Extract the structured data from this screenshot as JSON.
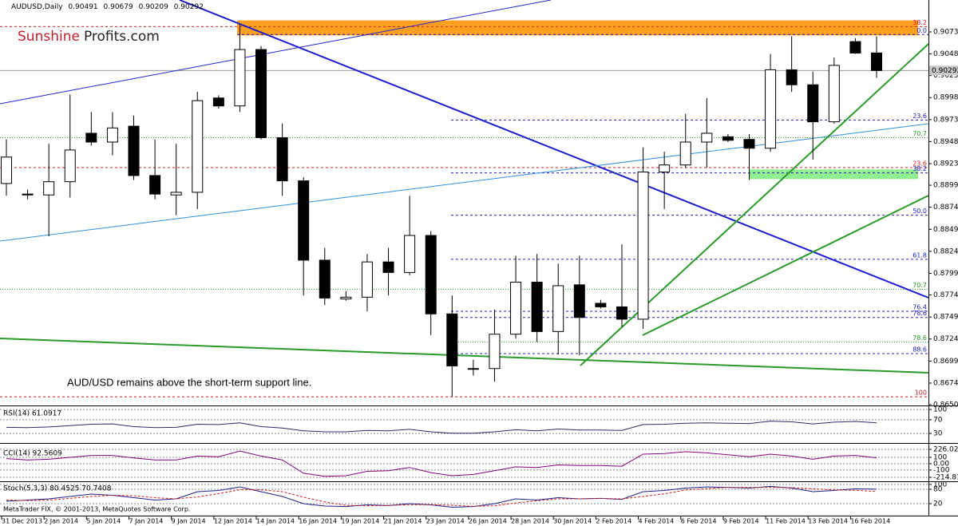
{
  "chart_data": [
    {
      "type": "candlestick",
      "symbol": "AUDUSD,Daily",
      "brand": [
        "Sunshine",
        "Profits.com"
      ],
      "annotation": "AUD/USD remains above the short-term support line.",
      "footer": "MetaTrader FIX, © 2001-2013, MetaQuotes Software Corp.",
      "categories": [
        "31 Dec 2013",
        null,
        "2 Jan 2014",
        null,
        "5 Jan 2014",
        null,
        "7 Jan 2014",
        null,
        "9 Jan 2014",
        null,
        "12 Jan 2014",
        null,
        "14 Jan 2014",
        null,
        "16 Jan 2014",
        null,
        "19 Jan 2014",
        null,
        "21 Jan 2014",
        null,
        "23 Jan 2014",
        null,
        "26 Jan 2014",
        null,
        "28 Jan 2014",
        null,
        "30 Jan 2014",
        null,
        "2 Feb 2014",
        null,
        "4 Feb 2014",
        null,
        "6 Feb 2014",
        null,
        "9 Feb 2014",
        null,
        "11 Feb 2014",
        null,
        "13 Feb 2014",
        null,
        "16 Feb 2014",
        null
      ],
      "open": [
        0.8901,
        0.8889,
        0.8888,
        0.8903,
        0.8958,
        0.8948,
        0.8966,
        0.891,
        0.8888,
        0.8891,
        0.8998,
        0.8989,
        0.9053,
        0.8953,
        0.8904,
        0.8814,
        0.877,
        0.8772,
        0.8812,
        0.88,
        0.8842,
        0.8753,
        0.8691,
        0.8691,
        0.873,
        0.8789,
        0.8733,
        0.8786,
        0.8765,
        0.8761,
        0.8747,
        0.8914,
        0.8922,
        0.8948,
        0.8954,
        0.8951,
        0.8941,
        0.903,
        0.9013,
        0.8971,
        0.9062,
        0.90491
      ],
      "high": [
        0.8951,
        0.8894,
        0.8946,
        0.9002,
        0.8982,
        0.8982,
        0.8978,
        0.8951,
        0.8946,
        0.9005,
        0.9001,
        0.9082,
        0.9057,
        0.8969,
        0.8908,
        0.8828,
        0.8779,
        0.8821,
        0.8828,
        0.8887,
        0.8847,
        0.8774,
        0.8701,
        0.8758,
        0.8819,
        0.8821,
        0.881,
        0.8819,
        0.8769,
        0.8832,
        0.8942,
        0.8937,
        0.898,
        0.8998,
        0.8957,
        0.8957,
        0.9048,
        0.9068,
        0.9028,
        0.9044,
        0.9066,
        0.90679
      ],
      "low": [
        0.8887,
        0.8883,
        0.8841,
        0.8885,
        0.8944,
        0.8933,
        0.8905,
        0.8883,
        0.8865,
        0.8872,
        0.8986,
        0.8982,
        0.8951,
        0.8887,
        0.8774,
        0.8763,
        0.8768,
        0.8756,
        0.8774,
        0.8797,
        0.8729,
        0.8659,
        0.8683,
        0.8676,
        0.8725,
        0.8721,
        0.8707,
        0.8706,
        0.8759,
        0.8738,
        0.8736,
        0.8872,
        0.8919,
        0.8919,
        0.8948,
        0.8905,
        0.8937,
        0.9005,
        0.8928,
        0.8969,
        0.9048,
        0.90209
      ],
      "close": [
        0.8931,
        0.8888,
        0.8903,
        0.8939,
        0.8948,
        0.8964,
        0.891,
        0.8889,
        0.8891,
        0.8995,
        0.8989,
        0.9053,
        0.8953,
        0.8904,
        0.8814,
        0.8771,
        0.8772,
        0.8812,
        0.88,
        0.8842,
        0.8753,
        0.8694,
        0.8691,
        0.873,
        0.8789,
        0.8733,
        0.8785,
        0.8749,
        0.8761,
        0.8747,
        0.8914,
        0.8922,
        0.8948,
        0.8958,
        0.895,
        0.8941,
        0.903,
        0.9013,
        0.8971,
        0.9035,
        0.9049,
        0.90292
      ],
      "ylim": [
        0.865,
        0.91092
      ],
      "yticks": [
        {
          "value": 0.9073,
          "label": "0.90730"
        },
        {
          "value": 0.9048,
          "label": "0.90480"
        },
        {
          "value": 0.90235,
          "label": "0.90235"
        },
        {
          "value": 0.89985,
          "label": "0.89985"
        },
        {
          "value": 0.89735,
          "label": "0.89735"
        },
        {
          "value": 0.89485,
          "label": "0.89485"
        },
        {
          "value": 0.89235,
          "label": "0.89235"
        },
        {
          "value": 0.8899,
          "label": "0.88990"
        },
        {
          "value": 0.8874,
          "label": "0.88740"
        },
        {
          "value": 0.8849,
          "label": "0.88490"
        },
        {
          "value": 0.8824,
          "label": "0.88240"
        },
        {
          "value": 0.8799,
          "label": "0.87990"
        },
        {
          "value": 0.87745,
          "label": "0.87745"
        },
        {
          "value": 0.87495,
          "label": "0.87495"
        },
        {
          "value": 0.87245,
          "label": "0.87245"
        },
        {
          "value": 0.86995,
          "label": "0.86995"
        },
        {
          "value": 0.86745,
          "label": "0.86745"
        },
        {
          "value": 0.865,
          "label": "0.86500"
        }
      ],
      "levels": [
        {
          "label": "38.2",
          "value": 0.9079,
          "color": "#d02020",
          "style": "dashed"
        },
        {
          "label": "0.0",
          "value": 0.907,
          "color": "#2020c0",
          "style": "dashed"
        },
        {
          "label": "23.6",
          "value": 0.8973,
          "color": "#2020c0",
          "style": "dashed"
        },
        {
          "label": "70.7",
          "value": 0.8953,
          "color": "#20a020",
          "style": "dotted"
        },
        {
          "label": "23.6",
          "value": 0.8919,
          "color": "#d02020",
          "style": "dashed"
        },
        {
          "label": "38.2",
          "value": 0.8913,
          "color": "#2020c0",
          "style": "dashed"
        },
        {
          "label": "50.0",
          "value": 0.8865,
          "color": "#2020c0",
          "style": "dashed"
        },
        {
          "label": "61.8",
          "value": 0.8815,
          "color": "#2020c0",
          "style": "dashed"
        },
        {
          "label": "70.7",
          "value": 0.8781,
          "color": "#20a020",
          "style": "dotted"
        },
        {
          "label": "76.4",
          "value": 0.8756,
          "color": "#2020c0",
          "style": "dashed"
        },
        {
          "label": "78.6",
          "value": 0.8749,
          "color": "#2020c0",
          "style": "dashed"
        },
        {
          "label": "78.6",
          "value": 0.8721,
          "color": "#20a020",
          "style": "dotted"
        },
        {
          "label": "88.6",
          "value": 0.8708,
          "color": "#2020c0",
          "style": "dashed"
        },
        {
          "label": "100",
          "value": 0.8659,
          "color": "#d02020",
          "style": "dashed"
        }
      ],
      "zones": [
        {
          "top": 0.9086,
          "bottom": 0.9069,
          "color": "#ffa020"
        },
        {
          "top": 0.8917,
          "bottom": 0.8906,
          "color": "#90ee90"
        }
      ]
    },
    {
      "type": "line",
      "title": "RSI(14) 61.0917",
      "color": "#2a2a6a",
      "values": [
        48,
        47,
        49,
        53,
        57,
        58,
        50,
        47,
        48,
        57,
        56,
        61,
        50,
        46,
        38,
        35,
        35,
        39,
        38,
        42,
        35,
        31,
        31,
        35,
        41,
        38,
        43,
        40,
        40,
        39,
        56,
        57,
        60,
        61,
        60,
        59,
        66,
        64,
        58,
        63,
        65,
        61.0917
      ],
      "ylim": [
        0,
        100
      ],
      "yticks": [
        100,
        70,
        30
      ]
    },
    {
      "type": "line",
      "title": "CCI(14) 92.5609",
      "color": "#800080",
      "values": [
        80,
        60,
        70,
        100,
        130,
        130,
        90,
        60,
        60,
        120,
        110,
        200,
        120,
        60,
        -150,
        -200,
        -190,
        -120,
        -110,
        -60,
        -140,
        -190,
        -170,
        -110,
        -50,
        -60,
        -20,
        -30,
        -30,
        -40,
        150,
        160,
        190,
        170,
        140,
        110,
        150,
        120,
        70,
        120,
        130,
        92.5609
      ],
      "ylim": [
        -214.8166,
        226.0213
      ],
      "yticks": [
        226.0213,
        100,
        {
          "value": 0,
          "label": "0.00"
        },
        -100,
        -214.8166
      ]
    },
    {
      "type": "line",
      "title": "Stoch(5,3,3) 80.4525 70.7408",
      "series": [
        {
          "color": "#1f1f8a",
          "values": [
            30,
            35,
            40,
            50,
            60,
            55,
            45,
            35,
            40,
            70,
            75,
            90,
            70,
            50,
            20,
            10,
            8,
            15,
            12,
            20,
            15,
            5,
            8,
            20,
            40,
            35,
            45,
            40,
            42,
            38,
            70,
            75,
            85,
            90,
            88,
            85,
            92,
            85,
            70,
            75,
            82,
            80.4525
          ]
        },
        {
          "color": "#d02020",
          "values": [
            35,
            33,
            35,
            42,
            50,
            55,
            53,
            45,
            40,
            48,
            62,
            78,
            78,
            70,
            47,
            27,
            13,
            11,
            12,
            16,
            16,
            13,
            9,
            11,
            23,
            32,
            40,
            40,
            42,
            40,
            50,
            61,
            77,
            83,
            88,
            88,
            88,
            87,
            82,
            77,
            76,
            70.7408
          ]
        }
      ],
      "ylim": [
        0,
        100
      ],
      "yticks": [
        100,
        80,
        20
      ]
    }
  ]
}
